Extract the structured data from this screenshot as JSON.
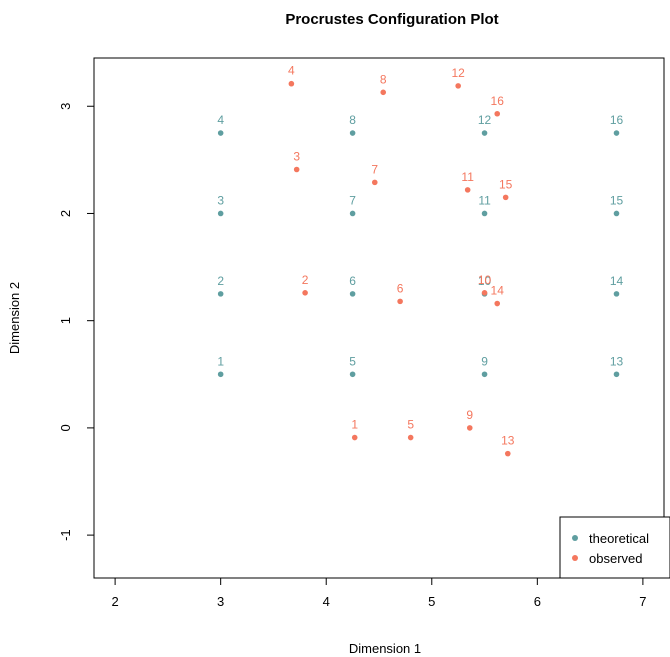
{
  "chart_data": {
    "type": "scatter",
    "title": "Procrustes Configuration Plot",
    "xlabel": "Dimension 1",
    "ylabel": "Dimension 2",
    "xlim": [
      1.8,
      7.2
    ],
    "ylim": [
      -1.4,
      3.45
    ],
    "xticks": [
      2,
      3,
      4,
      5,
      6,
      7
    ],
    "yticks": [
      -1,
      0,
      1,
      2,
      3
    ],
    "grid": false,
    "legend_position": "bottom-right",
    "series": [
      {
        "name": "theoretical",
        "color": "#5F9EA0",
        "points": [
          {
            "label": "1",
            "x": 3.0,
            "y": 0.5
          },
          {
            "label": "2",
            "x": 3.0,
            "y": 1.25
          },
          {
            "label": "3",
            "x": 3.0,
            "y": 2.0
          },
          {
            "label": "4",
            "x": 3.0,
            "y": 2.75
          },
          {
            "label": "5",
            "x": 4.25,
            "y": 0.5
          },
          {
            "label": "6",
            "x": 4.25,
            "y": 1.25
          },
          {
            "label": "7",
            "x": 4.25,
            "y": 2.0
          },
          {
            "label": "8",
            "x": 4.25,
            "y": 2.75
          },
          {
            "label": "9",
            "x": 5.5,
            "y": 0.5
          },
          {
            "label": "10",
            "x": 5.5,
            "y": 1.25
          },
          {
            "label": "11",
            "x": 5.5,
            "y": 2.0
          },
          {
            "label": "12",
            "x": 5.5,
            "y": 2.75
          },
          {
            "label": "13",
            "x": 6.75,
            "y": 0.5
          },
          {
            "label": "14",
            "x": 6.75,
            "y": 1.25
          },
          {
            "label": "15",
            "x": 6.75,
            "y": 2.0
          },
          {
            "label": "16",
            "x": 6.75,
            "y": 2.75
          }
        ]
      },
      {
        "name": "observed",
        "color": "#F4775E",
        "points": [
          {
            "label": "1",
            "x": 4.27,
            "y": -0.09
          },
          {
            "label": "2",
            "x": 3.8,
            "y": 1.26
          },
          {
            "label": "3",
            "x": 3.72,
            "y": 2.41
          },
          {
            "label": "4",
            "x": 3.67,
            "y": 3.21
          },
          {
            "label": "5",
            "x": 4.8,
            "y": -0.09
          },
          {
            "label": "6",
            "x": 4.7,
            "y": 1.18
          },
          {
            "label": "7",
            "x": 4.46,
            "y": 2.29
          },
          {
            "label": "8",
            "x": 4.54,
            "y": 3.13
          },
          {
            "label": "9",
            "x": 5.36,
            "y": 0.0
          },
          {
            "label": "10",
            "x": 5.5,
            "y": 1.26
          },
          {
            "label": "11",
            "x": 5.34,
            "y": 2.22
          },
          {
            "label": "12",
            "x": 5.25,
            "y": 3.19
          },
          {
            "label": "13",
            "x": 5.72,
            "y": -0.24
          },
          {
            "label": "14",
            "x": 5.62,
            "y": 1.16
          },
          {
            "label": "15",
            "x": 5.7,
            "y": 2.15
          },
          {
            "label": "16",
            "x": 5.62,
            "y": 2.93
          }
        ]
      }
    ]
  }
}
